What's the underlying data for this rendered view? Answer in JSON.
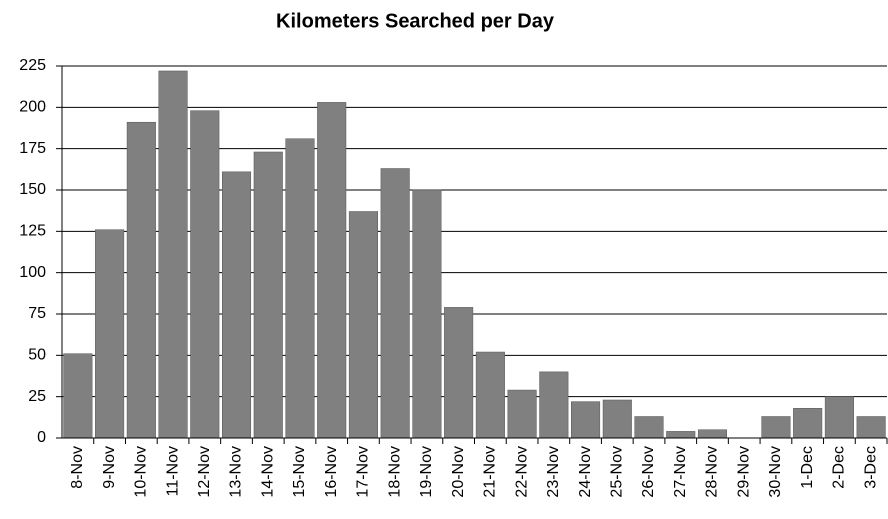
{
  "chart_data": {
    "type": "bar",
    "title": "Kilometers Searched per Day",
    "categories": [
      "8-Nov",
      "9-Nov",
      "10-Nov",
      "11-Nov",
      "12-Nov",
      "13-Nov",
      "14-Nov",
      "15-Nov",
      "16-Nov",
      "17-Nov",
      "18-Nov",
      "19-Nov",
      "20-Nov",
      "21-Nov",
      "22-Nov",
      "23-Nov",
      "24-Nov",
      "25-Nov",
      "26-Nov",
      "27-Nov",
      "28-Nov",
      "29-Nov",
      "30-Nov",
      "1-Dec",
      "2-Dec",
      "3-Dec"
    ],
    "values": [
      51,
      126,
      191,
      222,
      198,
      161,
      173,
      181,
      203,
      137,
      163,
      150,
      79,
      52,
      29,
      40,
      22,
      23,
      13,
      4,
      5,
      0,
      13,
      18,
      25,
      13
    ],
    "color": "#808080",
    "ylim": [
      0,
      225
    ],
    "yticks": [
      0,
      25,
      50,
      75,
      100,
      125,
      150,
      175,
      200,
      225
    ],
    "grid": true
  }
}
